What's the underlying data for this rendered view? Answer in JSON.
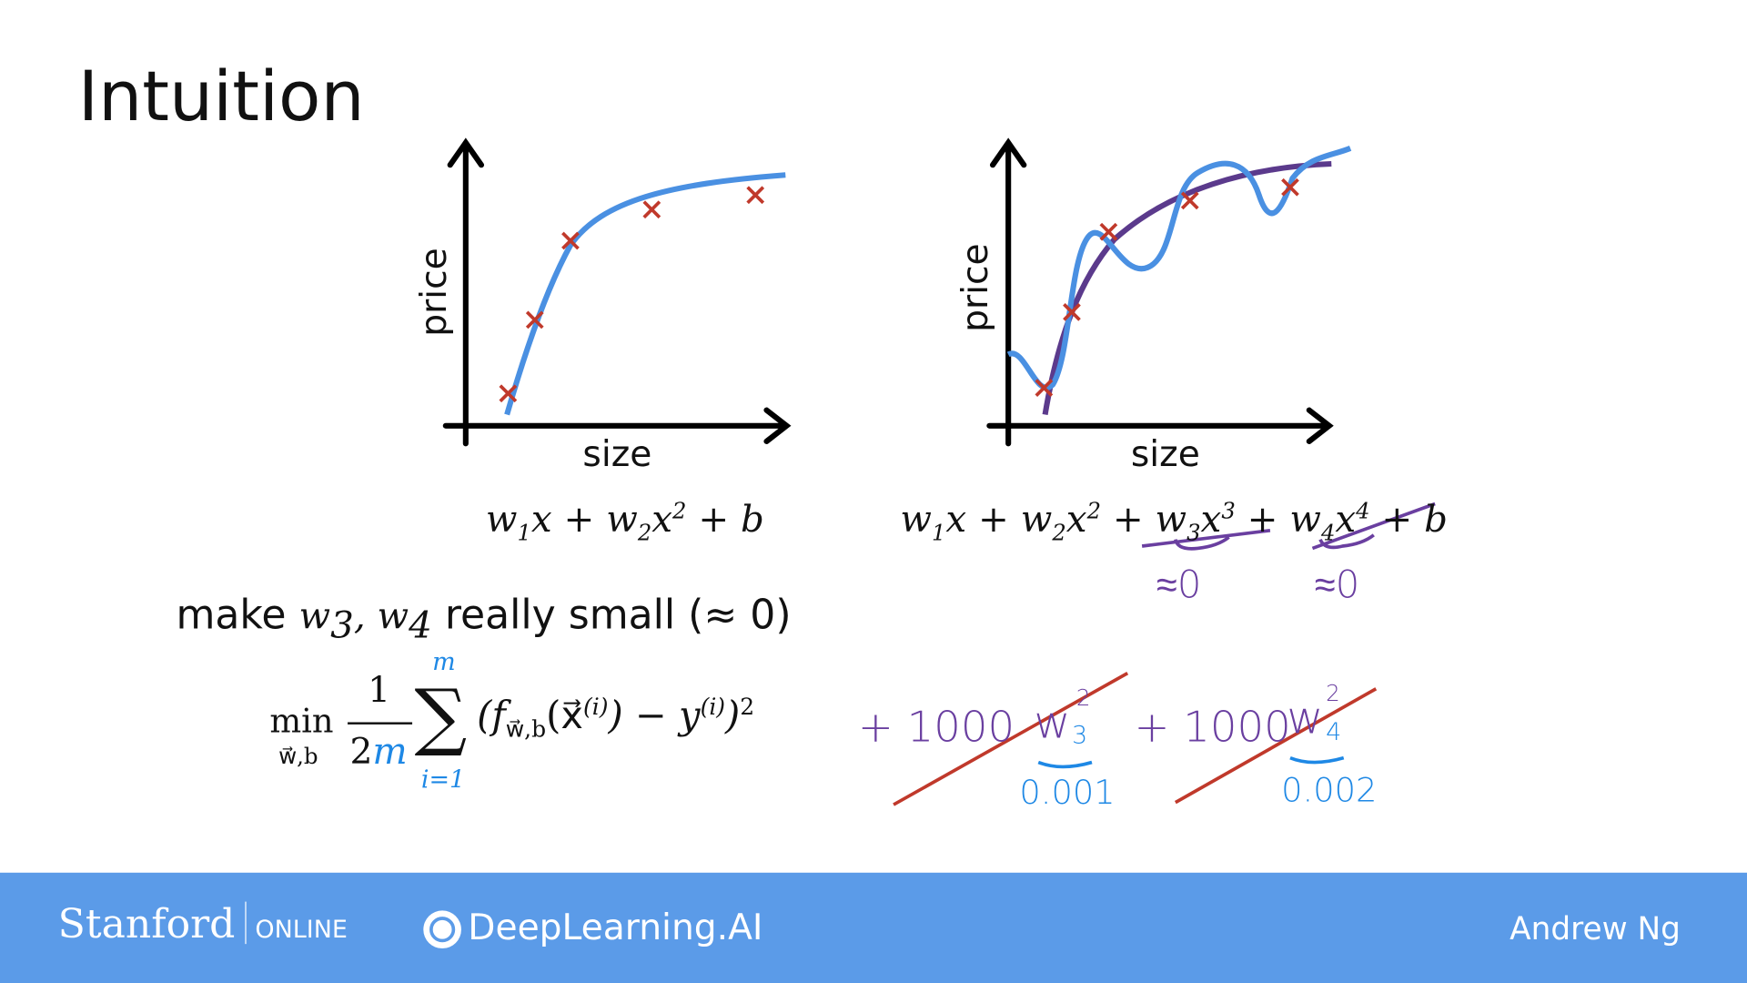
{
  "slide": {
    "title": "Intuition",
    "left_plot": {
      "y_label": "price",
      "x_label": "size"
    },
    "right_plot": {
      "y_label": "price",
      "x_label": "size"
    },
    "left_model": [
      "w",
      "1",
      "x + w",
      "2",
      "x",
      "2",
      " + b"
    ],
    "right_model": [
      "w",
      "1",
      "x + w",
      "2",
      "x",
      "2",
      " + w",
      "3",
      "x",
      "3",
      " + w",
      "4",
      "x",
      "4",
      " + b"
    ],
    "approx_notes": [
      "≈0",
      "≈0"
    ],
    "caption": [
      "make ",
      "w",
      "3",
      ", w",
      "4",
      " really small (≈ 0)"
    ],
    "cost": [
      "min",
      "w⃗,b",
      "1",
      "2",
      "m",
      "∑",
      "m",
      "i=1",
      "(f",
      "w⃗,b",
      "(x⃗",
      "(i)",
      ") − y",
      "(i)",
      ")",
      "2"
    ],
    "penalties": [
      {
        "plus": "+ 1000",
        "w": "w",
        "sup": "2",
        "sub": "3",
        "value": "0.001"
      },
      {
        "plus": "+ 1000",
        "w": "w",
        "sup": "2",
        "sub": "4",
        "value": "0.002"
      }
    ]
  },
  "footer": {
    "stanford": "Stanford",
    "online": "ONLINE",
    "brand": "DeepLearning.AI",
    "author": "Andrew Ng"
  }
}
